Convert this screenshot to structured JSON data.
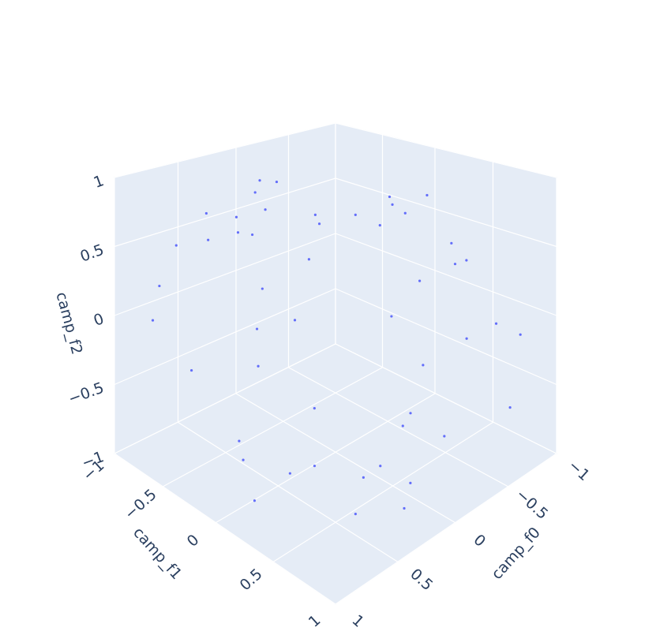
{
  "chart_data": {
    "type": "scatter3d",
    "xaxis_title": "camp_f0",
    "yaxis_title": "camp_f1",
    "zaxis_title": "camp_f2",
    "color": "#636efa",
    "xlim": [
      -1,
      1
    ],
    "ylim": [
      -1,
      1
    ],
    "zlim": [
      -1,
      1
    ],
    "xticks": [
      {
        "value": -1,
        "label": "−1"
      },
      {
        "value": -0.5,
        "label": "−0.5"
      },
      0,
      0.5,
      1
    ],
    "yticks": [
      {
        "value": -1,
        "label": "−1"
      },
      {
        "value": -0.5,
        "label": "−0.5"
      },
      0,
      0.5,
      1
    ],
    "zticks": [
      {
        "value": -1,
        "label": "−1"
      },
      {
        "value": -0.5,
        "label": "−0.5"
      },
      0,
      0.5,
      1
    ],
    "x": [
      0.12,
      -0.45,
      0.78,
      -0.9,
      0.33,
      0.56,
      -0.21,
      0.91,
      -0.67,
      0.05,
      0.44,
      -0.83,
      0.69,
      -0.12,
      0.27,
      -0.58,
      0.85,
      -0.36,
      0.14,
      0.62,
      -0.74,
      0.38,
      -0.05,
      0.95,
      -0.48,
      0.21,
      -0.93,
      0.51,
      -0.27,
      0.73,
      0.02,
      -0.62,
      0.88,
      -0.15,
      0.41,
      -0.79,
      0.3,
      0.66,
      -0.41,
      0.17,
      -0.97,
      0.58,
      -0.09,
      0.81,
      -0.53,
      0.25,
      0.7,
      -0.31,
      -0.86,
      0.47
    ],
    "y": [
      -0.6,
      0.35,
      -0.82,
      0.71,
      0.1,
      -0.25,
      0.9,
      -0.47,
      -0.12,
      0.64,
      -0.93,
      0.28,
      0.52,
      -0.7,
      0.83,
      -0.38,
      0.05,
      0.46,
      -0.55,
      0.97,
      -0.2,
      0.61,
      -0.88,
      0.33,
      0.15,
      -0.44,
      0.77,
      -0.66,
      0.4,
      -0.1,
      0.92,
      -0.79,
      0.22,
      0.58,
      -0.31,
      0.68,
      -0.95,
      0.49,
      0.12,
      -0.57,
      0.3,
      0.74,
      -0.28,
      -0.85,
      0.55,
      0.86,
      -0.15,
      -0.72,
      -0.4,
      0.08
    ],
    "z": [
      0.85,
      -0.4,
      0.2,
      -0.75,
      0.55,
      -0.9,
      0.1,
      0.65,
      -0.3,
      0.95,
      -0.6,
      0.35,
      -0.15,
      0.75,
      -0.85,
      0.45,
      -0.5,
      0.9,
      0.05,
      -0.35,
      0.6,
      -0.7,
      0.3,
      0.15,
      -0.95,
      0.7,
      -0.2,
      0.5,
      -0.65,
      0.8,
      -0.45,
      0.25,
      -0.8,
      0.4,
      0.92,
      -0.1,
      0.55,
      -0.55,
      0.72,
      -0.25,
      0.18,
      -0.78,
      0.62,
      -0.05,
      0.38,
      -0.68,
      0.88,
      -0.42,
      0.28,
      -0.88
    ]
  }
}
